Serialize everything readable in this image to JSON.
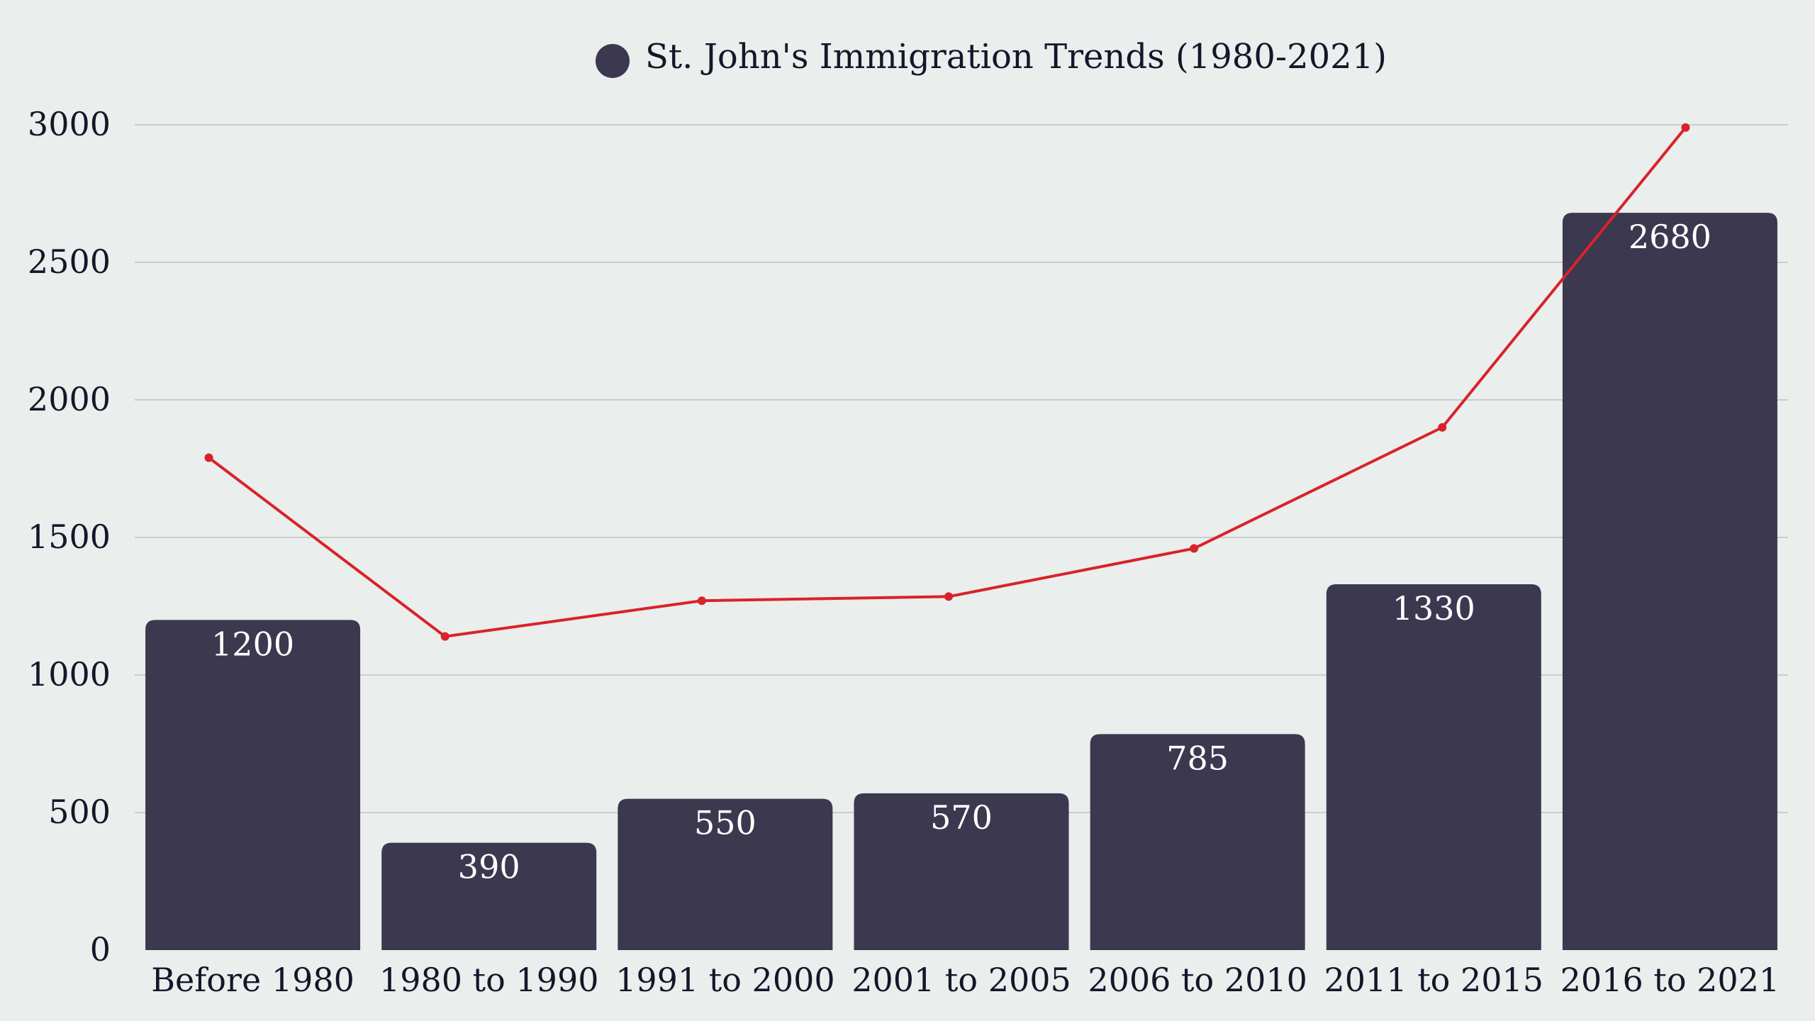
{
  "colors": {
    "background": "#eaeeed",
    "bar": "#3c384f",
    "line": "#d8232a",
    "grid": "#c9cdcc",
    "text": "#16162a",
    "bar_label": "#ffffff"
  },
  "chart_data": {
    "type": "bar",
    "title": "",
    "xlabel": "",
    "ylabel": "",
    "ylim": [
      0,
      3000
    ],
    "yticks": [
      0,
      500,
      1000,
      1500,
      2000,
      2500,
      3000
    ],
    "grid": true,
    "legend": {
      "placement": "top-center",
      "entries": [
        "St. John's Immigration Trends (1980-2021)"
      ]
    },
    "categories": [
      "Before 1980",
      "1980 to 1990",
      "1991 to 2000",
      "2001 to 2005",
      "2006 to 2010",
      "2011 to 2015",
      "2016 to 2021"
    ],
    "series": [
      {
        "name": "St. John's Immigration Trends (1980-2021)",
        "type": "bar",
        "values": [
          1200,
          390,
          550,
          570,
          785,
          1330,
          2680
        ],
        "data_labels": [
          "1200",
          "390",
          "550",
          "570",
          "785",
          "1330",
          "2680"
        ]
      },
      {
        "type": "line",
        "values": [
          1790,
          1140,
          1270,
          1285,
          1460,
          1900,
          2990
        ]
      }
    ]
  }
}
